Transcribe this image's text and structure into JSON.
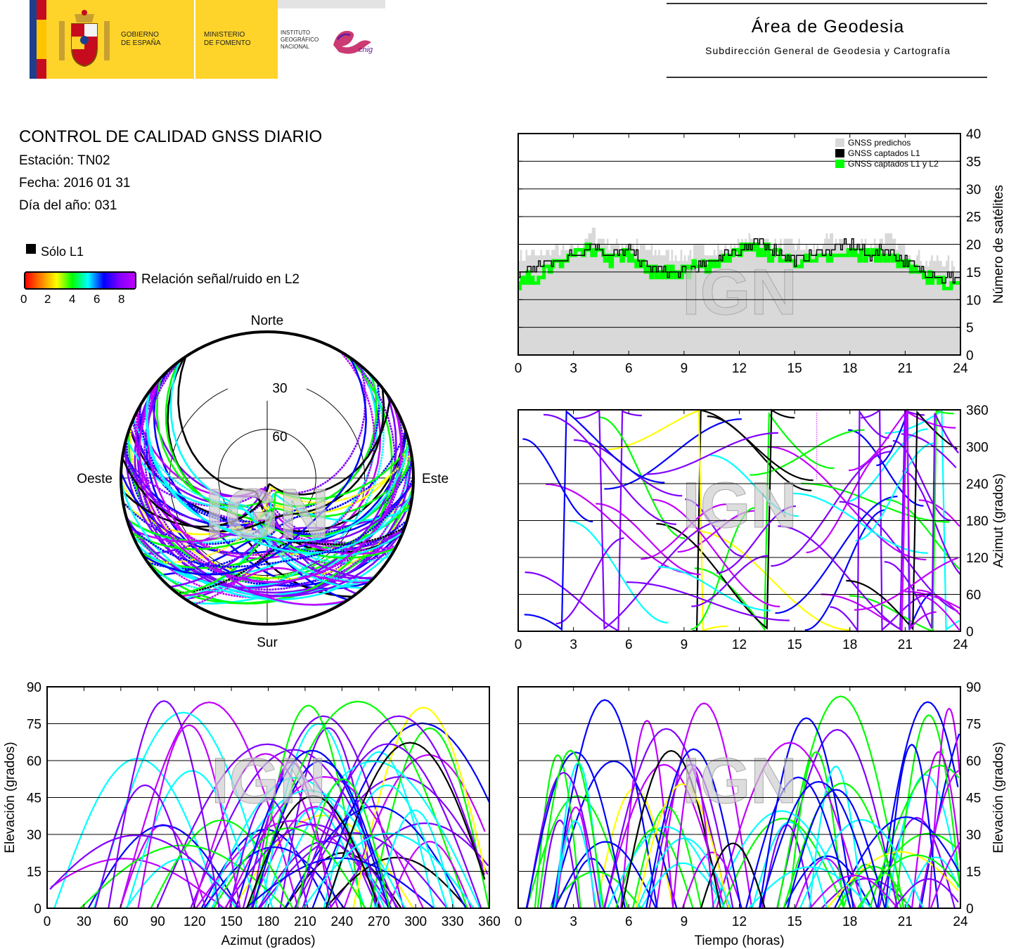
{
  "header": {
    "gobierno": "GOBIERNO\nDE ESPAÑA",
    "ministerio": "MINISTERIO\nDE FOMENTO",
    "instituto": "INSTITUTO\nGEOGRÁFICO\nNACIONAL",
    "cnig": "cnig",
    "area_title": "Área de Geodesia",
    "area_subtitle": "Subdirección General de Geodesia y Cartografía"
  },
  "report": {
    "title": "CONTROL DE CALIDAD GNSS DIARIO",
    "station": "Estación: TN02",
    "date": "Fecha: 2016 01 31",
    "doy": "Día del año: 031"
  },
  "legend": {
    "solo_l1": "Sólo L1",
    "snr_label": "Relación señal/ruido en L2",
    "snr_ticks": [
      "0",
      "2",
      "4",
      "6",
      "8"
    ],
    "snr_colors": [
      "#ff0000",
      "#ff8000",
      "#ffff00",
      "#00ff00",
      "#00ffff",
      "#0000ff",
      "#8000ff",
      "#c000ff"
    ]
  },
  "watermark": "IGN",
  "colors": {
    "predicted": "#d9d9d9",
    "l1": "#000000",
    "l1l2": "#00ff00"
  },
  "chart_data": [
    {
      "type": "area",
      "id": "satellites",
      "ylabel": "Número de satélites",
      "ylim": [
        0,
        40
      ],
      "xlim": [
        0,
        24
      ],
      "xticks": [
        "0",
        "3",
        "6",
        "9",
        "12",
        "15",
        "18",
        "21",
        "24"
      ],
      "yticks": [
        "0",
        "5",
        "10",
        "15",
        "20",
        "25",
        "30",
        "35",
        "40"
      ],
      "grid": true,
      "legend_position": "top-right",
      "series": [
        {
          "name": "GNSS predichos",
          "x": [
            0,
            1,
            2,
            3,
            4,
            5,
            6,
            7,
            8,
            9,
            10,
            11,
            12,
            13,
            14,
            15,
            16,
            17,
            18,
            19,
            20,
            21,
            22,
            23,
            24
          ],
          "values": [
            18,
            18,
            19,
            19,
            22,
            20,
            20,
            19,
            18,
            18,
            19,
            19,
            20,
            21,
            20,
            20,
            19,
            21,
            20,
            20,
            21,
            19,
            17,
            17,
            15
          ]
        },
        {
          "name": "GNSS captados L1",
          "x": [
            0,
            1,
            2,
            3,
            4,
            5,
            6,
            7,
            8,
            9,
            10,
            11,
            12,
            13,
            14,
            15,
            16,
            17,
            18,
            19,
            20,
            21,
            22,
            23,
            24
          ],
          "values": [
            15,
            16,
            17,
            18,
            20,
            18,
            19,
            16,
            15,
            15,
            16,
            18,
            19,
            20,
            19,
            17,
            18,
            19,
            20,
            18,
            19,
            17,
            15,
            14,
            14
          ]
        },
        {
          "name": "GNSS captados L1 y L2",
          "x": [
            0,
            1,
            2,
            3,
            4,
            5,
            6,
            7,
            8,
            9,
            10,
            11,
            12,
            13,
            14,
            15,
            16,
            17,
            18,
            19,
            20,
            21,
            22,
            23,
            24
          ],
          "values": [
            13,
            14,
            16,
            18,
            19,
            17,
            18,
            15,
            15,
            15,
            16,
            17,
            19,
            19,
            18,
            17,
            17,
            18,
            19,
            18,
            18,
            16,
            14,
            13,
            12
          ]
        }
      ]
    },
    {
      "type": "scatter",
      "id": "skyplot",
      "labels": {
        "north": "Norte",
        "south": "Sur",
        "west": "Oeste",
        "east": "Este"
      },
      "ring_labels": [
        "30",
        "60"
      ]
    },
    {
      "type": "scatter",
      "id": "azimuth-time",
      "ylabel": "Azimut (grados)",
      "xlim": [
        0,
        24
      ],
      "ylim": [
        0,
        360
      ],
      "xticks": [
        "0",
        "3",
        "6",
        "9",
        "12",
        "15",
        "18",
        "21",
        "24"
      ],
      "yticks": [
        "0",
        "60",
        "120",
        "180",
        "240",
        "300",
        "360"
      ]
    },
    {
      "type": "scatter",
      "id": "elevation-azimuth",
      "xlabel": "Azimut (grados)",
      "ylabel": "Elevación (grados)",
      "xlim": [
        0,
        360
      ],
      "ylim": [
        0,
        90
      ],
      "xticks": [
        "0",
        "30",
        "60",
        "90",
        "120",
        "150",
        "180",
        "210",
        "240",
        "270",
        "300",
        "330",
        "360"
      ],
      "yticks": [
        "0",
        "15",
        "30",
        "45",
        "60",
        "75",
        "90"
      ]
    },
    {
      "type": "scatter",
      "id": "elevation-time",
      "xlabel": "Tiempo (horas)",
      "ylabel": "Elevación (grados)",
      "xlim": [
        0,
        24
      ],
      "ylim": [
        0,
        90
      ],
      "xticks": [
        "0",
        "3",
        "6",
        "9",
        "12",
        "15",
        "18",
        "21",
        "24"
      ],
      "yticks": [
        "0",
        "15",
        "30",
        "45",
        "60",
        "75",
        "90"
      ]
    }
  ]
}
